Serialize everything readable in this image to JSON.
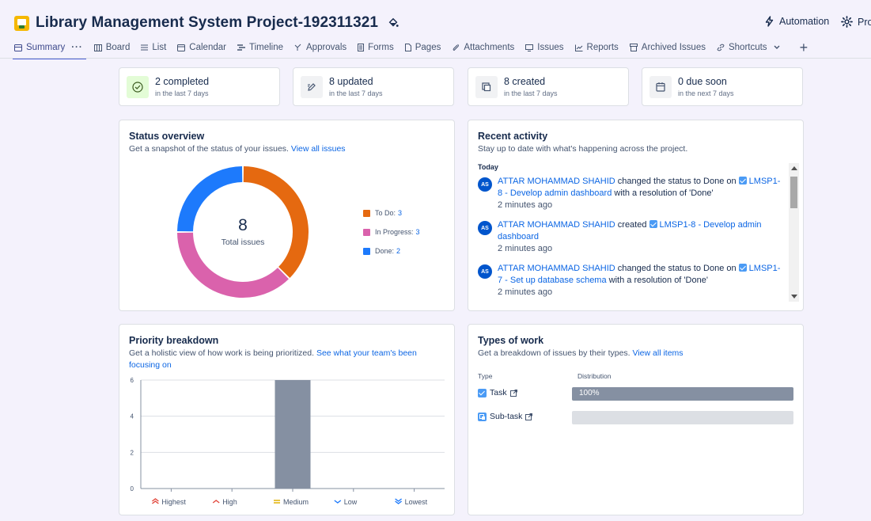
{
  "header": {
    "title": "Library Management System Project-192311321",
    "automation_label": "Automation",
    "project_label": "Proj"
  },
  "tabs": [
    {
      "label": "Summary"
    },
    {
      "label": "Board"
    },
    {
      "label": "List"
    },
    {
      "label": "Calendar"
    },
    {
      "label": "Timeline"
    },
    {
      "label": "Approvals"
    },
    {
      "label": "Forms"
    },
    {
      "label": "Pages"
    },
    {
      "label": "Attachments"
    },
    {
      "label": "Issues"
    },
    {
      "label": "Reports"
    },
    {
      "label": "Archived Issues"
    },
    {
      "label": "Shortcuts"
    }
  ],
  "stats": [
    {
      "value": "2 completed",
      "sub": "in the last 7 days"
    },
    {
      "value": "8 updated",
      "sub": "in the last 7 days"
    },
    {
      "value": "8 created",
      "sub": "in the last 7 days"
    },
    {
      "value": "0 due soon",
      "sub": "in the next 7 days"
    }
  ],
  "status_overview": {
    "title": "Status overview",
    "subtitle": "Get a snapshot of the status of your issues.",
    "link": "View all issues",
    "total": "8",
    "total_label": "Total issues",
    "legend": [
      {
        "label": "To Do:",
        "count": "3",
        "color": "#e56910"
      },
      {
        "label": "In Progress:",
        "count": "3",
        "color": "#da62ac"
      },
      {
        "label": "Done:",
        "count": "2",
        "color": "#1d7afc"
      }
    ]
  },
  "chart_data": {
    "type": "pie",
    "categories": [
      "To Do",
      "In Progress",
      "Done"
    ],
    "values": [
      3,
      3,
      2
    ],
    "title": "Status overview",
    "colors": [
      "#e56910",
      "#da62ac",
      "#1d7afc"
    ]
  },
  "recent_activity": {
    "title": "Recent activity",
    "subtitle": "Stay up to date with what's happening across the project.",
    "group": "Today",
    "items": [
      {
        "avatar": "AS",
        "who": "ATTAR MOHAMMAD SHAHID",
        "action": " changed the status to Done on ",
        "issue": "LMSP1-8 - Develop admin dashboard",
        "suffix": " with a resolution of 'Done'",
        "time": "2 minutes ago"
      },
      {
        "avatar": "AS",
        "who": "ATTAR MOHAMMAD SHAHID",
        "action": " created ",
        "issue": "LMSP1-8 - Develop admin dashboard",
        "suffix": "",
        "time": "2 minutes ago"
      },
      {
        "avatar": "AS",
        "who": "ATTAR MOHAMMAD SHAHID",
        "action": " changed the status to Done on ",
        "issue": "LMSP1-7 - Set up database schema",
        "suffix": " with a resolution of 'Done'",
        "time": "2 minutes ago"
      }
    ]
  },
  "priority": {
    "title": "Priority breakdown",
    "subtitle": "Get a holistic view of how work is being prioritized.",
    "link": "See what your team's been focusing on",
    "chart": {
      "type": "bar",
      "categories": [
        "Highest",
        "High",
        "Medium",
        "Low",
        "Lowest"
      ],
      "values": [
        0,
        0,
        6,
        0,
        0
      ],
      "yticks": [
        "0",
        "2",
        "4",
        "6"
      ],
      "ylim": [
        0,
        6
      ],
      "bar_color": "#8590a2",
      "icon_colors": [
        "#e2483d",
        "#e2483d",
        "#e2b203",
        "#1d7afc",
        "#1d7afc"
      ]
    }
  },
  "types_of_work": {
    "title": "Types of work",
    "subtitle": "Get a breakdown of issues by their types.",
    "link": "View all items",
    "col_type": "Type",
    "col_dist": "Distribution",
    "rows": [
      {
        "label": "Task",
        "pct_label": "100%",
        "fraction": 1.0
      },
      {
        "label": "Sub-task",
        "pct_label": "",
        "fraction": 0.0
      }
    ]
  }
}
